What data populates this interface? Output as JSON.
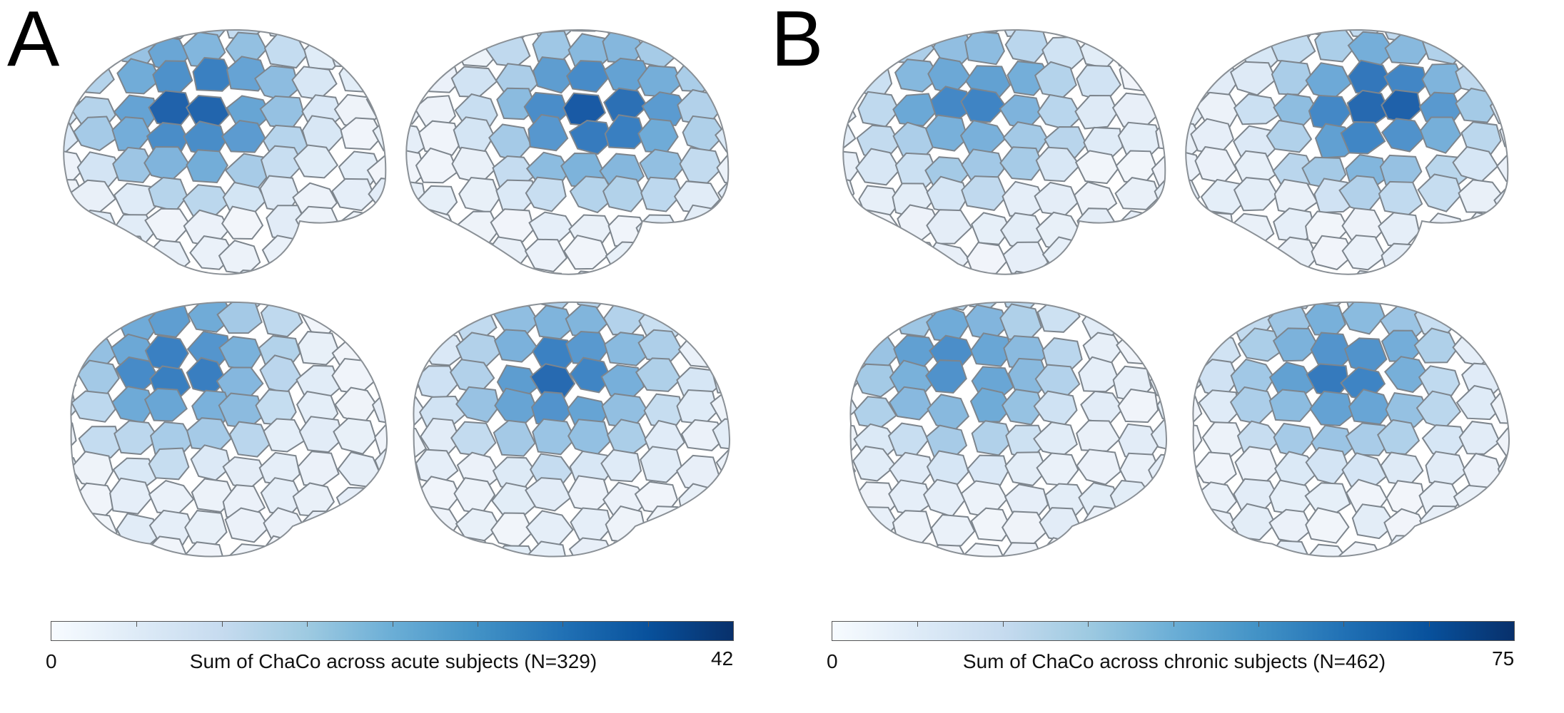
{
  "panels": [
    {
      "letter": "A",
      "colorbar": {
        "min_label": "0",
        "max_label": "42",
        "caption": "Sum of ChaCo across acute subjects (N=329)",
        "colors": [
          "#f7fbff",
          "#deebf7",
          "#c6dbef",
          "#9ecae1",
          "#6baed6",
          "#4292c6",
          "#2171b5",
          "#08519c",
          "#08306b"
        ]
      }
    },
    {
      "letter": "B",
      "colorbar": {
        "min_label": "0",
        "max_label": "75",
        "caption": "Sum of ChaCo across chronic subjects (N=462)",
        "colors": [
          "#f7fbff",
          "#deebf7",
          "#c6dbef",
          "#9ecae1",
          "#6baed6",
          "#4292c6",
          "#2171b5",
          "#08519c",
          "#08306b"
        ]
      }
    }
  ],
  "views": [
    "lateral-left",
    "lateral-right",
    "medial-left",
    "medial-right"
  ]
}
